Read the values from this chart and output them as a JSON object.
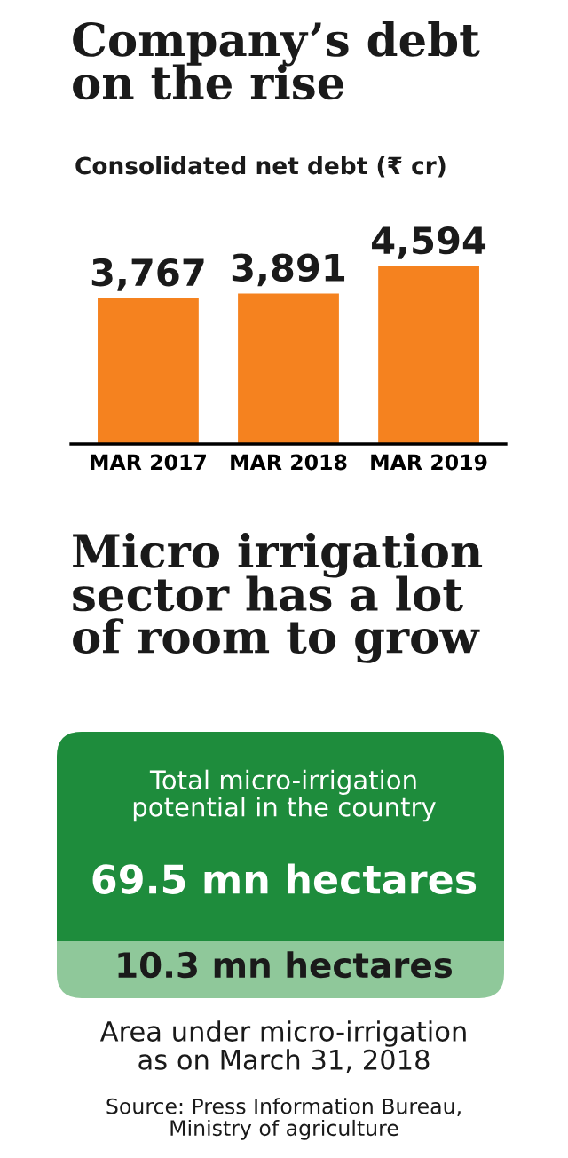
{
  "chart_data": [
    {
      "type": "bar",
      "title": "Company’s debt\non the rise",
      "subtitle": "Consolidated net debt (₹ cr)",
      "categories": [
        "MAR 2017",
        "MAR 2018",
        "MAR 2019"
      ],
      "values": [
        3767,
        3891,
        4594
      ],
      "color": "#f5821f",
      "value_labels": [
        "3,767",
        "3,891",
        "4,594"
      ]
    },
    {
      "type": "other",
      "title": "Micro irrigation\nsector has a lot\nof room to grow",
      "colors": [
        "#1e8c3c",
        "#8fc89a"
      ],
      "annotations": [
        "Total micro-irrigation\npotential in the country",
        "69.5 mn hectares",
        "10.3 mn hectares",
        "Area under micro-irrigation\nas on March 31, 2018",
        "Source: Press Information Bureau,\nMinistry of agriculture"
      ]
    }
  ]
}
